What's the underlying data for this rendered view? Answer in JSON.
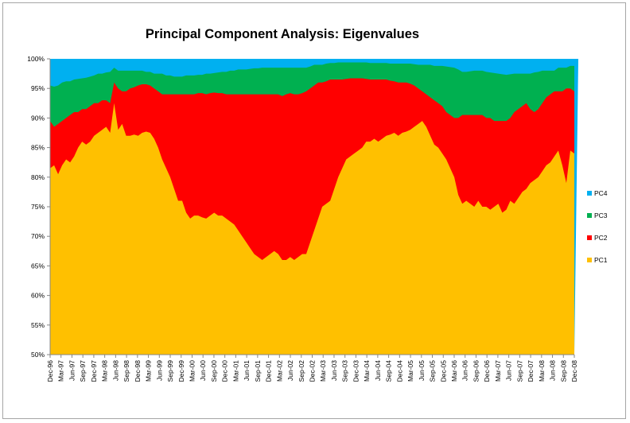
{
  "chart_data": {
    "type": "area",
    "stacked": true,
    "title": "Principal Component Analysis: Eigenvalues",
    "xlabel": "",
    "ylabel": "",
    "ylim": [
      0.5,
      1.0
    ],
    "yticks": [
      "50%",
      "55%",
      "60%",
      "65%",
      "70%",
      "75%",
      "80%",
      "85%",
      "90%",
      "95%",
      "100%"
    ],
    "grid": false,
    "legend_position": "right",
    "x_tick_labels": [
      "Dec-96",
      "Mar-97",
      "Jun-97",
      "Sep-97",
      "Dec-97",
      "Mar-98",
      "Jun-98",
      "Sep-98",
      "Dec-98",
      "Mar-99",
      "Jun-99",
      "Sep-99",
      "Dec-99",
      "Mar-00",
      "Jun-00",
      "Sep-00",
      "Dec-00",
      "Mar-01",
      "Jun-01",
      "Sep-01",
      "Dec-01",
      "Mar-02",
      "Jun-02",
      "Sep-02",
      "Dec-02",
      "Mar-03",
      "Jun-03",
      "Sep-03",
      "Dec-03",
      "Mar-04",
      "Jun-04",
      "Sep-04",
      "Dec-04",
      "Mar-05",
      "Jun-05",
      "Sep-05",
      "Dec-05",
      "Mar-06",
      "Jun-06",
      "Sep-06",
      "Dec-06",
      "Mar-07",
      "Jun-07",
      "Sep-07",
      "Dec-07",
      "Mar-08",
      "Jun-08",
      "Sep-08",
      "Dec-08"
    ],
    "months_per_tick": 3,
    "months_per_point": 1,
    "series": [
      {
        "name": "PC1",
        "color": "#FFC000",
        "anchors": [
          0.815,
          0.82,
          0.805,
          0.82,
          0.83,
          0.825,
          0.835,
          0.85,
          0.86,
          0.855,
          0.86,
          0.87,
          0.875,
          0.88,
          0.885,
          0.875,
          0.925,
          0.88,
          0.89,
          0.87,
          0.87,
          0.872,
          0.87,
          0.875,
          0.877,
          0.875,
          0.865,
          0.85,
          0.83,
          0.815,
          0.8,
          0.78,
          0.76,
          0.76,
          0.74,
          0.73,
          0.735,
          0.735,
          0.732,
          0.73,
          0.735,
          0.74,
          0.735,
          0.735,
          0.73,
          0.725,
          0.72,
          0.71,
          0.7,
          0.69,
          0.68,
          0.67,
          0.665,
          0.66,
          0.665,
          0.67,
          0.675,
          0.67,
          0.66,
          0.66,
          0.665,
          0.66,
          0.665,
          0.67,
          0.67,
          0.69,
          0.71,
          0.73,
          0.75,
          0.755,
          0.76,
          0.78,
          0.8,
          0.815,
          0.83,
          0.835,
          0.84,
          0.845,
          0.85,
          0.86,
          0.86,
          0.865,
          0.86,
          0.865,
          0.87,
          0.872,
          0.875,
          0.87,
          0.875,
          0.877,
          0.88,
          0.885,
          0.89,
          0.895,
          0.885,
          0.87,
          0.855,
          0.85,
          0.84,
          0.83,
          0.815,
          0.8,
          0.77,
          0.755,
          0.76,
          0.755,
          0.75,
          0.76,
          0.75,
          0.75,
          0.745,
          0.75,
          0.755,
          0.74,
          0.745,
          0.76,
          0.755,
          0.765,
          0.775,
          0.78,
          0.79,
          0.795,
          0.8,
          0.81,
          0.82,
          0.825,
          0.835,
          0.845,
          0.82,
          0.79,
          0.845,
          0.84
        ]
      },
      {
        "name": "PC2",
        "color": "#FF0000",
        "anchors": [
          0.895,
          0.885,
          0.89,
          0.895,
          0.9,
          0.905,
          0.91,
          0.91,
          0.915,
          0.915,
          0.92,
          0.925,
          0.925,
          0.93,
          0.93,
          0.925,
          0.96,
          0.95,
          0.945,
          0.945,
          0.95,
          0.952,
          0.955,
          0.957,
          0.957,
          0.955,
          0.95,
          0.945,
          0.94,
          0.94,
          0.94,
          0.94,
          0.94,
          0.94,
          0.94,
          0.94,
          0.94,
          0.942,
          0.942,
          0.94,
          0.942,
          0.943,
          0.942,
          0.942,
          0.94,
          0.94,
          0.94,
          0.94,
          0.94,
          0.94,
          0.94,
          0.94,
          0.94,
          0.94,
          0.94,
          0.94,
          0.94,
          0.94,
          0.937,
          0.94,
          0.942,
          0.94,
          0.94,
          0.942,
          0.945,
          0.95,
          0.955,
          0.96,
          0.96,
          0.962,
          0.965,
          0.965,
          0.965,
          0.965,
          0.966,
          0.967,
          0.967,
          0.967,
          0.967,
          0.966,
          0.965,
          0.965,
          0.965,
          0.965,
          0.965,
          0.963,
          0.962,
          0.96,
          0.96,
          0.96,
          0.958,
          0.955,
          0.95,
          0.945,
          0.94,
          0.935,
          0.93,
          0.925,
          0.92,
          0.91,
          0.905,
          0.9,
          0.9,
          0.905,
          0.905,
          0.905,
          0.905,
          0.905,
          0.905,
          0.9,
          0.9,
          0.895,
          0.895,
          0.895,
          0.895,
          0.9,
          0.91,
          0.915,
          0.92,
          0.925,
          0.915,
          0.91,
          0.915,
          0.925,
          0.935,
          0.94,
          0.945,
          0.945,
          0.945,
          0.95,
          0.95,
          0.945
        ]
      },
      {
        "name": "PC3",
        "color": "#00B050",
        "anchors": [
          0.955,
          0.953,
          0.955,
          0.96,
          0.962,
          0.962,
          0.965,
          0.966,
          0.967,
          0.968,
          0.97,
          0.972,
          0.975,
          0.975,
          0.977,
          0.978,
          0.985,
          0.98,
          0.98,
          0.98,
          0.98,
          0.98,
          0.98,
          0.98,
          0.978,
          0.978,
          0.975,
          0.975,
          0.975,
          0.972,
          0.972,
          0.97,
          0.97,
          0.97,
          0.972,
          0.972,
          0.972,
          0.973,
          0.973,
          0.975,
          0.975,
          0.976,
          0.977,
          0.978,
          0.978,
          0.98,
          0.98,
          0.982,
          0.982,
          0.982,
          0.983,
          0.984,
          0.984,
          0.985,
          0.985,
          0.985,
          0.985,
          0.985,
          0.985,
          0.985,
          0.985,
          0.985,
          0.985,
          0.985,
          0.985,
          0.987,
          0.99,
          0.99,
          0.99,
          0.992,
          0.993,
          0.993,
          0.994,
          0.994,
          0.994,
          0.994,
          0.994,
          0.994,
          0.994,
          0.994,
          0.993,
          0.993,
          0.993,
          0.993,
          0.993,
          0.992,
          0.992,
          0.992,
          0.992,
          0.992,
          0.992,
          0.991,
          0.99,
          0.99,
          0.99,
          0.99,
          0.988,
          0.988,
          0.988,
          0.987,
          0.986,
          0.985,
          0.982,
          0.978,
          0.978,
          0.979,
          0.98,
          0.98,
          0.98,
          0.978,
          0.977,
          0.976,
          0.975,
          0.974,
          0.973,
          0.974,
          0.975,
          0.975,
          0.975,
          0.975,
          0.975,
          0.977,
          0.978,
          0.98,
          0.98,
          0.98,
          0.98,
          0.985,
          0.985,
          0.985,
          0.988,
          0.988
        ]
      },
      {
        "name": "PC4",
        "color": "#00B0F0",
        "anchors": [
          1,
          1,
          1,
          1,
          1,
          1,
          1,
          1,
          1,
          1,
          1,
          1,
          1,
          1,
          1,
          1,
          1,
          1,
          1,
          1,
          1,
          1,
          1,
          1,
          1,
          1,
          1,
          1,
          1,
          1,
          1,
          1,
          1,
          1,
          1,
          1,
          1,
          1,
          1,
          1,
          1,
          1,
          1,
          1,
          1,
          1,
          1,
          1,
          1,
          1,
          1,
          1,
          1,
          1,
          1,
          1,
          1,
          1,
          1,
          1,
          1,
          1,
          1,
          1,
          1,
          1,
          1,
          1,
          1,
          1,
          1,
          1,
          1,
          1,
          1,
          1,
          1,
          1,
          1,
          1,
          1,
          1,
          1,
          1,
          1,
          1,
          1,
          1,
          1,
          1,
          1,
          1,
          1,
          1,
          1,
          1,
          1,
          1,
          1,
          1,
          1,
          1,
          1,
          1,
          1,
          1,
          1,
          1,
          1,
          1,
          1,
          1,
          1,
          1,
          1,
          1,
          1,
          1,
          1,
          1,
          1,
          1,
          1,
          1,
          1,
          1,
          1,
          1,
          1,
          1,
          1,
          1,
          1
        ]
      }
    ],
    "values_note_omitted": false
  }
}
